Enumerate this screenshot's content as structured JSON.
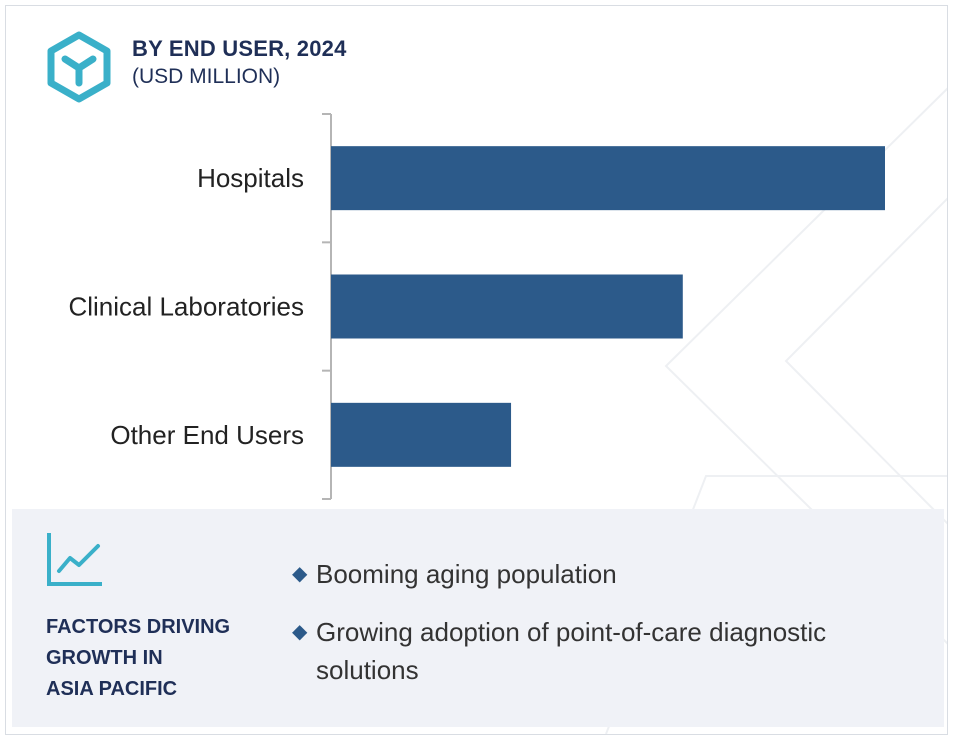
{
  "header": {
    "title": "BY END USER, 2024",
    "subtitle": "(USD MILLION)",
    "logo_icon": "cube-logo-icon"
  },
  "chart_data": {
    "type": "bar",
    "orientation": "horizontal",
    "title": "BY END USER, 2024",
    "subtitle": "(USD MILLION)",
    "categories": [
      "Hospitals",
      "Clinical Laboratories",
      "Other End Users"
    ],
    "values": [
      100,
      63.5,
      32.5
    ],
    "xlim": [
      0,
      100
    ],
    "grid": false,
    "bar_color": "#2c5a8a"
  },
  "factors": {
    "icon": "trend-chart-icon",
    "title": "FACTORS DRIVING\nGROWTH IN\nASIA PACIFIC",
    "items": [
      "Booming aging population",
      "Growing adoption of point-of-care diagnostic solutions"
    ],
    "bullet_icon": "diamond-bullet-icon"
  },
  "colors": {
    "accent": "#3ab0c9",
    "bar": "#2c5a8a",
    "heading": "#1f2f57",
    "panel": "#f0f2f7"
  }
}
